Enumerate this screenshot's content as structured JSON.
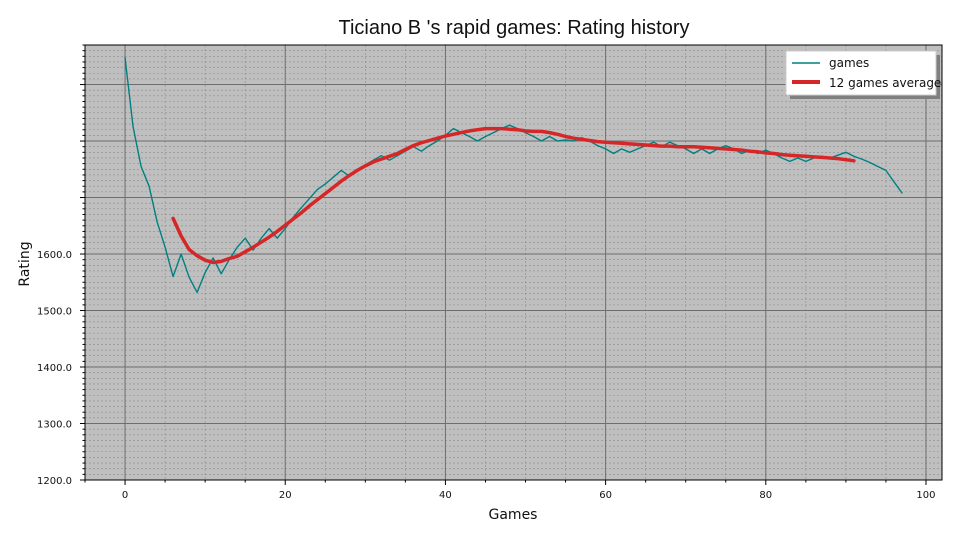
{
  "chart_data": {
    "type": "line",
    "title": "Ticiano B 's rapid games: Rating history",
    "xlabel": "Games",
    "ylabel": "Rating",
    "xlim": [
      -5,
      102
    ],
    "ylim": [
      1200,
      1970
    ],
    "xticks": [
      0,
      20,
      40,
      60,
      80,
      100
    ],
    "yticks": [
      1200,
      1300,
      1400,
      1500,
      1600
    ],
    "ytick_labels": [
      "1200.0",
      "1300.0",
      "1400.0",
      "1500.0",
      "1600.0"
    ],
    "grid": true,
    "legend_position": "top-right",
    "background": "#bfbfbf",
    "series": [
      {
        "name": "games",
        "color": "#008080",
        "x": [
          0,
          1,
          2,
          3,
          4,
          5,
          6,
          7,
          8,
          9,
          10,
          11,
          12,
          13,
          14,
          15,
          16,
          17,
          18,
          19,
          20,
          21,
          22,
          23,
          24,
          25,
          26,
          27,
          28,
          29,
          30,
          31,
          32,
          33,
          34,
          35,
          36,
          37,
          38,
          39,
          40,
          41,
          42,
          43,
          44,
          45,
          46,
          47,
          48,
          49,
          50,
          51,
          52,
          53,
          54,
          55,
          56,
          57,
          58,
          59,
          60,
          61,
          62,
          63,
          64,
          65,
          66,
          67,
          68,
          69,
          70,
          71,
          72,
          73,
          74,
          75,
          76,
          77,
          78,
          79,
          80,
          81,
          82,
          83,
          84,
          85,
          86,
          87,
          88,
          89,
          90,
          91,
          92,
          93,
          94,
          95,
          96,
          97
        ],
        "values": [
          1948,
          1825,
          1755,
          1720,
          1657,
          1612,
          1560,
          1600,
          1559,
          1532,
          1567,
          1593,
          1565,
          1590,
          1612,
          1628,
          1607,
          1628,
          1645,
          1628,
          1645,
          1665,
          1682,
          1698,
          1714,
          1724,
          1736,
          1748,
          1738,
          1750,
          1758,
          1766,
          1774,
          1766,
          1774,
          1782,
          1790,
          1782,
          1792,
          1800,
          1810,
          1822,
          1815,
          1808,
          1800,
          1808,
          1815,
          1822,
          1828,
          1822,
          1815,
          1808,
          1800,
          1808,
          1800,
          1802,
          1800,
          1806,
          1800,
          1792,
          1786,
          1778,
          1786,
          1780,
          1786,
          1792,
          1798,
          1790,
          1798,
          1792,
          1786,
          1778,
          1786,
          1778,
          1786,
          1792,
          1786,
          1778,
          1784,
          1778,
          1784,
          1778,
          1770,
          1764,
          1770,
          1764,
          1770,
          1773,
          1770,
          1775,
          1780,
          1773,
          1768,
          1762,
          1755,
          1748,
          1728,
          1708
        ]
      },
      {
        "name": "12 games average",
        "color": "#d62728",
        "x": [
          6,
          7,
          8,
          9,
          10,
          11,
          12,
          13,
          14,
          15,
          16,
          17,
          18,
          19,
          20,
          21,
          22,
          23,
          24,
          25,
          26,
          27,
          28,
          29,
          30,
          31,
          32,
          33,
          34,
          35,
          36,
          37,
          38,
          39,
          40,
          41,
          42,
          43,
          44,
          45,
          46,
          47,
          48,
          49,
          50,
          51,
          52,
          53,
          54,
          55,
          56,
          57,
          58,
          59,
          60,
          61,
          62,
          63,
          64,
          65,
          66,
          67,
          68,
          69,
          70,
          71,
          72,
          73,
          74,
          75,
          76,
          77,
          78,
          79,
          80,
          81,
          82,
          83,
          84,
          85,
          86,
          87,
          88,
          89,
          90,
          91
        ],
        "values": [
          1663,
          1632,
          1608,
          1597,
          1589,
          1585,
          1587,
          1592,
          1596,
          1604,
          1612,
          1621,
          1630,
          1640,
          1651,
          1662,
          1673,
          1685,
          1696,
          1707,
          1718,
          1729,
          1739,
          1748,
          1756,
          1763,
          1768,
          1773,
          1778,
          1785,
          1792,
          1797,
          1801,
          1805,
          1809,
          1812,
          1815,
          1818,
          1820,
          1822,
          1822,
          1822,
          1821,
          1820,
          1818,
          1817,
          1817,
          1815,
          1812,
          1808,
          1805,
          1803,
          1801,
          1799,
          1798,
          1797,
          1796,
          1795,
          1794,
          1793,
          1792,
          1791,
          1791,
          1790,
          1790,
          1790,
          1789,
          1788,
          1787,
          1786,
          1785,
          1784,
          1782,
          1781,
          1779,
          1778,
          1776,
          1775,
          1774,
          1773,
          1772,
          1771,
          1770,
          1769,
          1767,
          1765
        ]
      }
    ]
  }
}
